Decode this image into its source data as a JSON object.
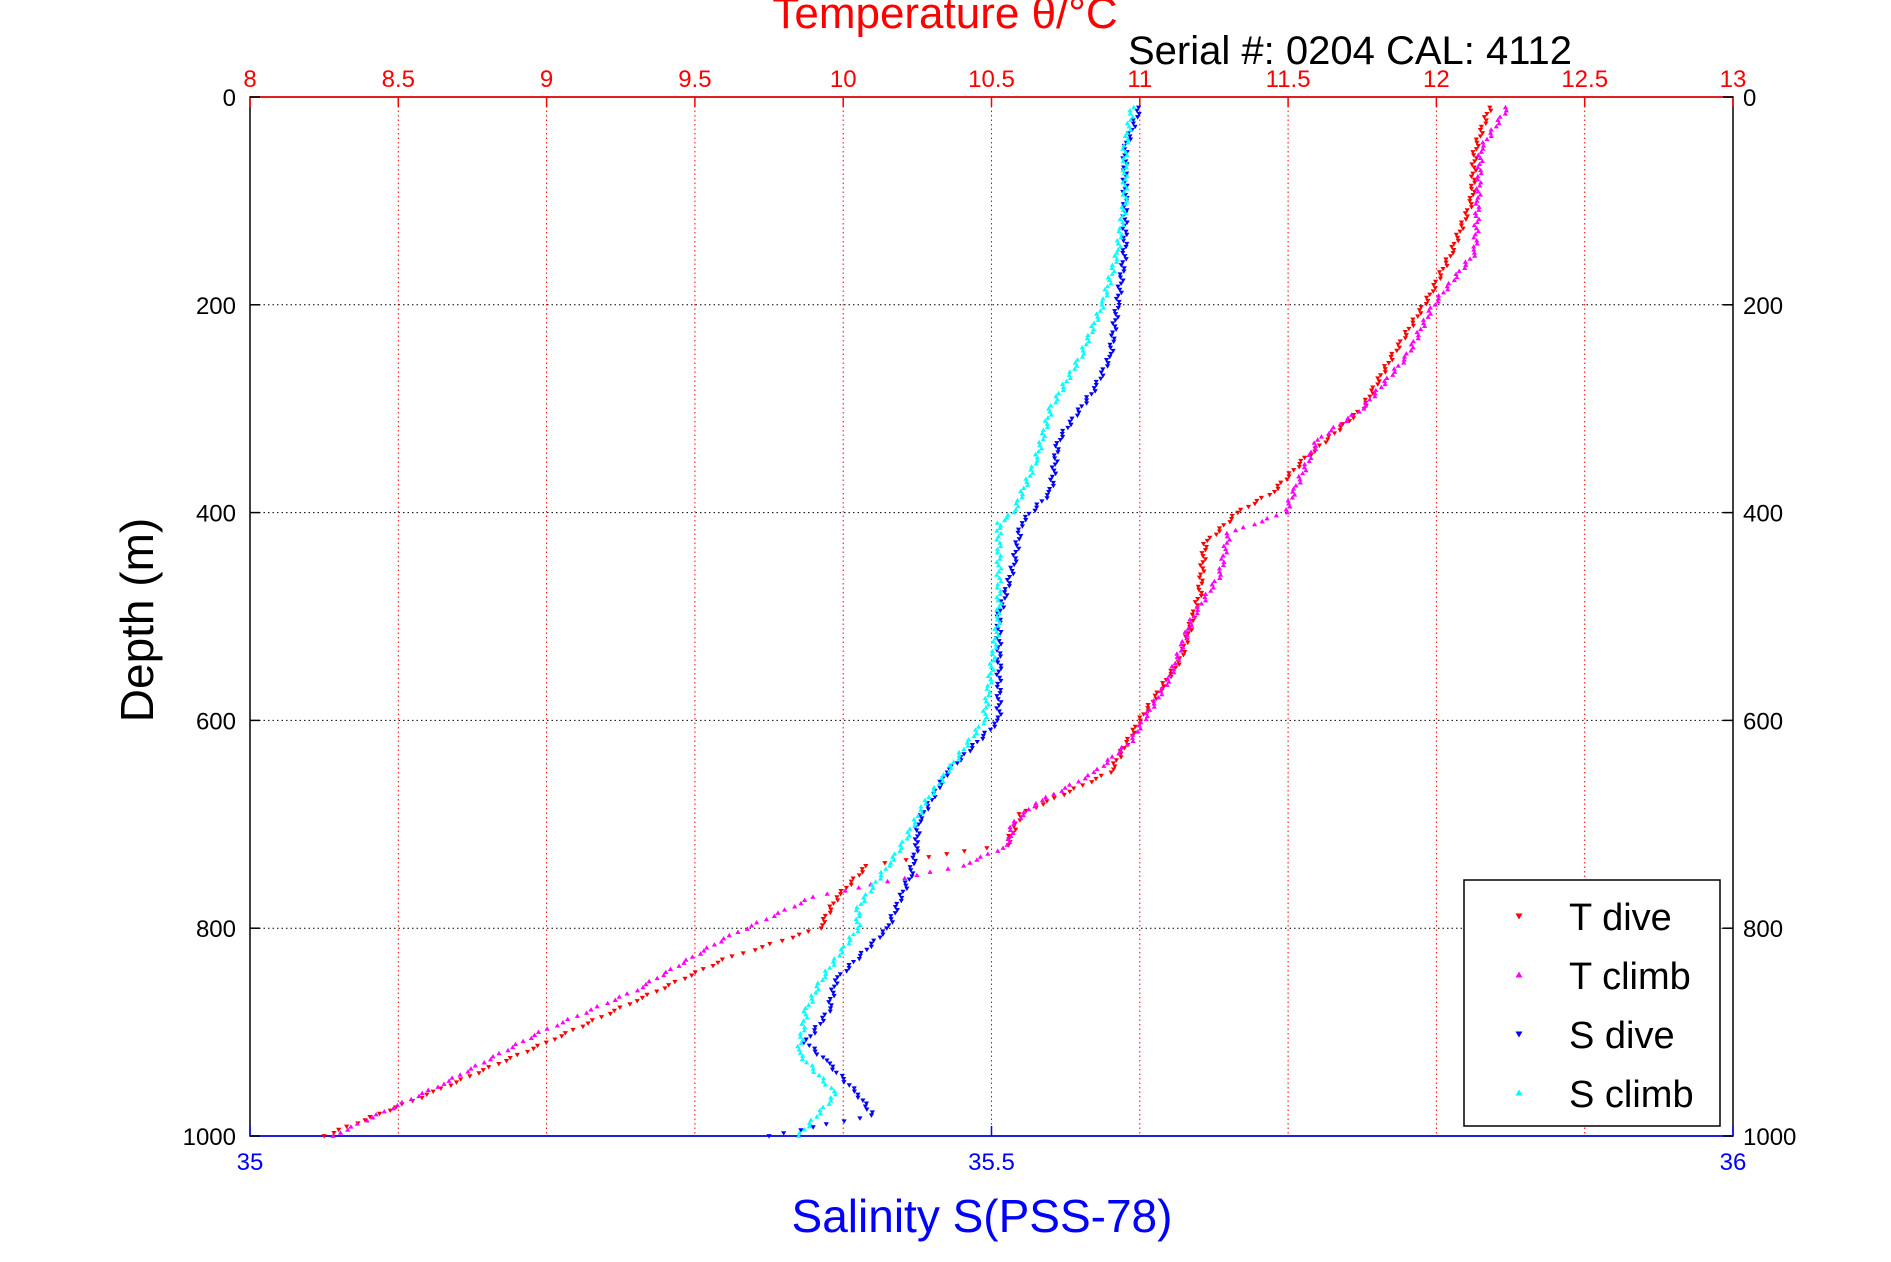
{
  "chart_data": {
    "type": "scatter",
    "title": "Temperature θ/°C",
    "subtitle": "Serial #: 0204  CAL: 4112",
    "xlabel": "Salinity S(PSS-78)",
    "ylabel": "Depth (m)",
    "temperature_axis": {
      "range": [
        8,
        13
      ],
      "ticks": [
        "8",
        "8.5",
        "9",
        "9.5",
        "10",
        "10.5",
        "11",
        "11.5",
        "12",
        "12.5",
        "13"
      ],
      "grid": true
    },
    "salinity_axis": {
      "range": [
        35,
        36
      ],
      "ticks": [
        "35",
        "35.5",
        "36"
      ]
    },
    "depth_axis": {
      "range": [
        0,
        1000
      ],
      "reversed": true,
      "ticks": [
        "0",
        "200",
        "400",
        "600",
        "800",
        "1000"
      ],
      "grid": true
    },
    "legend": {
      "position": "bottom-right"
    },
    "series": [
      {
        "name": "T dive",
        "axis": "temperature",
        "color": "#ff0000",
        "marker": "triangle-down",
        "depth": [
          10,
          50,
          100,
          150,
          190,
          250,
          300,
          350,
          380,
          400,
          430,
          480,
          540,
          600,
          650,
          690,
          720,
          740,
          770,
          800,
          830,
          870,
          910,
          960,
          1000
        ],
        "values": [
          12.18,
          12.13,
          12.12,
          12.05,
          11.98,
          11.85,
          11.75,
          11.55,
          11.45,
          11.33,
          11.22,
          11.2,
          11.14,
          11.0,
          10.9,
          10.6,
          10.55,
          10.08,
          9.98,
          9.92,
          9.6,
          9.3,
          9.0,
          8.6,
          8.25
        ]
      },
      {
        "name": "T climb",
        "axis": "temperature",
        "color": "#ff00ff",
        "marker": "triangle-up",
        "depth": [
          10,
          50,
          100,
          150,
          200,
          250,
          300,
          330,
          380,
          400,
          420,
          460,
          500,
          560,
          620,
          650,
          680,
          700,
          720,
          740,
          770,
          810,
          860,
          900,
          950,
          1000
        ],
        "values": [
          12.24,
          12.15,
          12.14,
          12.13,
          11.99,
          11.9,
          11.75,
          11.6,
          11.52,
          11.49,
          11.3,
          11.27,
          11.18,
          11.1,
          10.97,
          10.85,
          10.65,
          10.57,
          10.56,
          10.4,
          9.9,
          9.6,
          9.3,
          8.98,
          8.65,
          8.28
        ]
      },
      {
        "name": "S dive",
        "axis": "salinity",
        "color": "#0000ff",
        "marker": "triangle-down",
        "depth": [
          10,
          50,
          100,
          150,
          200,
          250,
          280,
          330,
          380,
          410,
          450,
          500,
          550,
          600,
          650,
          700,
          720,
          750,
          800,
          850,
          880,
          910,
          930,
          960,
          980,
          1000
        ],
        "values": [
          35.6,
          35.59,
          35.59,
          35.59,
          35.585,
          35.58,
          35.57,
          35.545,
          35.54,
          35.52,
          35.515,
          35.505,
          35.505,
          35.505,
          35.47,
          35.45,
          35.45,
          35.445,
          35.43,
          35.395,
          35.39,
          35.375,
          35.39,
          35.41,
          35.42,
          35.35
        ]
      },
      {
        "name": "S climb",
        "axis": "salinity",
        "color": "#00ffff",
        "marker": "triangle-up",
        "depth": [
          10,
          50,
          100,
          150,
          200,
          250,
          300,
          350,
          400,
          410,
          420,
          500,
          600,
          680,
          720,
          740,
          780,
          800,
          850,
          880,
          920,
          960,
          1000
        ],
        "values": [
          35.595,
          35.59,
          35.59,
          35.585,
          35.575,
          35.56,
          35.54,
          35.53,
          35.515,
          35.505,
          35.505,
          35.505,
          35.495,
          35.455,
          35.44,
          35.43,
          35.41,
          35.41,
          35.385,
          35.375,
          35.37,
          35.395,
          35.37
        ]
      }
    ]
  }
}
